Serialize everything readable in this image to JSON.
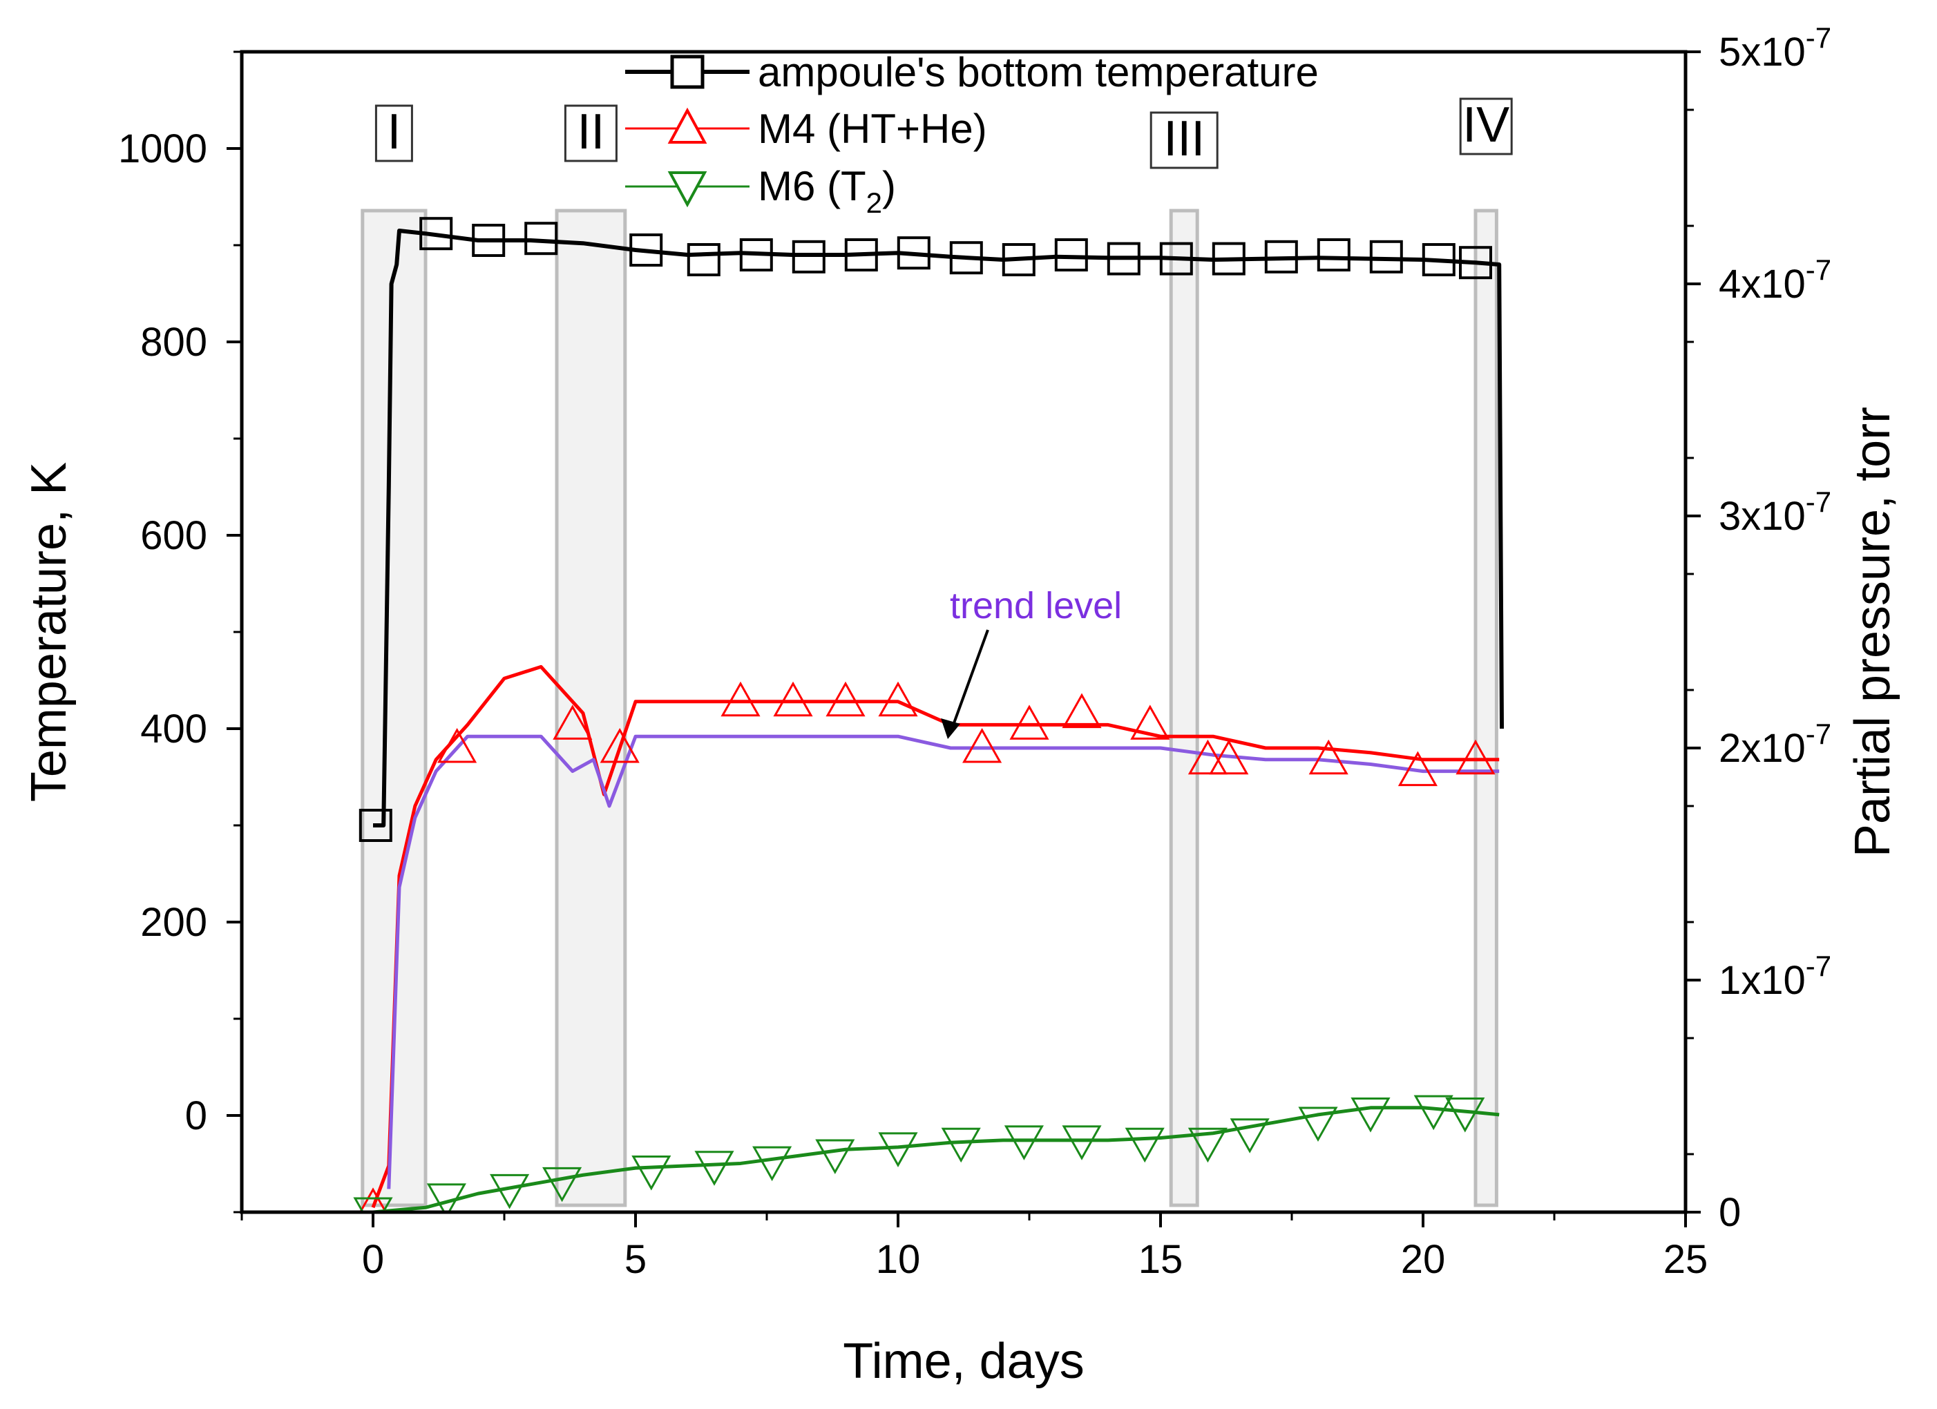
{
  "chart_data": {
    "type": "line",
    "xlabel": "Time, days",
    "ylabel": "Temperature, K",
    "y2label": "Partial pressure, torr",
    "xlim": [
      -2.5,
      25
    ],
    "ylim": [
      -100,
      1100
    ],
    "y2lim": [
      0,
      5e-07
    ],
    "x_ticks": [
      0,
      5,
      10,
      15,
      20,
      25
    ],
    "x_tick_labels": [
      "0",
      "5",
      "10",
      "15",
      "20",
      "25"
    ],
    "y_ticks": [
      0,
      200,
      400,
      600,
      800,
      1000
    ],
    "y_tick_labels": [
      "0",
      "200",
      "400",
      "600",
      "800",
      "1000"
    ],
    "y2_ticks": [
      0,
      1e-07,
      2e-07,
      3e-07,
      4e-07,
      5e-07
    ],
    "y2_tick_mantissa": [
      "0",
      "1x10",
      "2x10",
      "3x10",
      "4x10",
      "5x10"
    ],
    "y2_tick_exponent": [
      "",
      "-7",
      "-7",
      "-7",
      "-7",
      "-7"
    ],
    "legend": [
      {
        "label": "ampoule's bottom temperature",
        "color": "#000000",
        "marker": "square"
      },
      {
        "label": "M4 (HT+He)",
        "color": "#ff0000",
        "marker": "triangle-up"
      },
      {
        "label": "M6 (T",
        "sub": "2",
        "tail": ")",
        "color": "#1a8a1a",
        "marker": "triangle-down"
      }
    ],
    "regions": [
      {
        "label": "I",
        "x0": -0.2,
        "x1": 1.0
      },
      {
        "label": "II",
        "x0": 3.5,
        "x1": 4.8
      },
      {
        "label": "III",
        "x0": 15.2,
        "x1": 15.7
      },
      {
        "label": "IV",
        "x0": 21.0,
        "x1": 21.4
      }
    ],
    "annotation": {
      "text": "trend level",
      "color": "#7b2fe0",
      "x": 11.0,
      "y": 390
    },
    "series": [
      {
        "name": "ampoule's bottom temperature",
        "axis": "left",
        "unit": "K",
        "color": "#000000",
        "x": [
          0.0,
          0.2,
          0.3,
          0.35,
          0.45,
          0.5,
          1.0,
          2.0,
          3.0,
          4.0,
          5.0,
          6.0,
          7.0,
          8.0,
          9.0,
          10.0,
          11.0,
          12.0,
          13.0,
          14.0,
          15.0,
          16.0,
          17.0,
          18.0,
          19.0,
          20.0,
          21.0,
          21.45,
          21.5
        ],
        "y": [
          300,
          300,
          650,
          860,
          880,
          915,
          912,
          905,
          905,
          902,
          895,
          890,
          892,
          890,
          890,
          892,
          888,
          885,
          888,
          887,
          887,
          885,
          886,
          887,
          886,
          885,
          882,
          880,
          400
        ],
        "markers_x": [
          0.05,
          1.2,
          2.2,
          3.2,
          5.2,
          6.3,
          7.3,
          8.3,
          9.3,
          10.3,
          11.3,
          12.3,
          13.3,
          14.3,
          15.3,
          16.3,
          17.3,
          18.3,
          19.3,
          20.3,
          21.0
        ],
        "markers_y": [
          300,
          912,
          905,
          907,
          895,
          885,
          890,
          888,
          890,
          892,
          887,
          885,
          890,
          886,
          886,
          886,
          888,
          890,
          888,
          885,
          882
        ]
      },
      {
        "name": "M4 (HT+He)",
        "axis": "right",
        "unit": "torr",
        "color": "#ff0000",
        "x": [
          0.0,
          0.3,
          0.5,
          0.8,
          1.2,
          1.8,
          2.5,
          3.2,
          4.0,
          4.4,
          5.0,
          6.0,
          7.0,
          8.0,
          9.0,
          10.0,
          11.0,
          12.0,
          13.0,
          14.0,
          15.0,
          16.0,
          17.0,
          18.0,
          19.0,
          20.0,
          21.0,
          21.45
        ],
        "y": [
          2e-09,
          2e-08,
          1.45e-07,
          1.75e-07,
          1.95e-07,
          2.1e-07,
          2.3e-07,
          2.35e-07,
          2.15e-07,
          1.8e-07,
          2.2e-07,
          2.2e-07,
          2.2e-07,
          2.2e-07,
          2.2e-07,
          2.2e-07,
          2.1e-07,
          2.1e-07,
          2.1e-07,
          2.1e-07,
          2.05e-07,
          2.05e-07,
          2e-07,
          2e-07,
          1.98e-07,
          1.95e-07,
          1.95e-07,
          1.95e-07
        ],
        "markers_x": [
          0.0,
          1.6,
          3.8,
          4.7,
          7.0,
          8.0,
          9.0,
          10.0,
          11.6,
          12.5,
          13.5,
          14.8,
          15.9,
          16.3,
          18.2,
          19.9,
          21.0
        ],
        "markers_y": [
          2e-09,
          2e-07,
          2.1e-07,
          2e-07,
          2.2e-07,
          2.2e-07,
          2.2e-07,
          2.2e-07,
          2e-07,
          2.1e-07,
          2.15e-07,
          2.1e-07,
          1.95e-07,
          1.95e-07,
          1.95e-07,
          1.9e-07,
          1.95e-07
        ]
      },
      {
        "name": "trend level",
        "axis": "right",
        "unit": "torr",
        "color": "#8a5ae0",
        "x": [
          0.3,
          0.5,
          0.8,
          1.2,
          1.8,
          2.5,
          3.2,
          3.8,
          4.2,
          4.5,
          5.0,
          6.0,
          7.0,
          8.0,
          9.0,
          10.0,
          11.0,
          12.0,
          13.0,
          14.0,
          15.0,
          16.0,
          17.0,
          18.0,
          19.0,
          20.0,
          21.0,
          21.45
        ],
        "y": [
          1e-08,
          1.4e-07,
          1.7e-07,
          1.9e-07,
          2.05e-07,
          2.05e-07,
          2.05e-07,
          1.9e-07,
          1.95e-07,
          1.75e-07,
          2.05e-07,
          2.05e-07,
          2.05e-07,
          2.05e-07,
          2.05e-07,
          2.05e-07,
          2e-07,
          2e-07,
          2e-07,
          2e-07,
          2e-07,
          1.97e-07,
          1.95e-07,
          1.95e-07,
          1.93e-07,
          1.9e-07,
          1.9e-07,
          1.9e-07
        ]
      },
      {
        "name": "M6 (T2)",
        "axis": "right",
        "unit": "torr",
        "color": "#1a8a1a",
        "x": [
          0.0,
          1.0,
          2.0,
          3.0,
          4.0,
          5.0,
          6.0,
          7.0,
          8.0,
          9.0,
          10.0,
          11.0,
          12.0,
          13.0,
          14.0,
          15.0,
          16.0,
          17.0,
          18.0,
          19.0,
          20.0,
          21.0,
          21.45
        ],
        "y": [
          0,
          2e-09,
          8e-09,
          1.2e-08,
          1.6e-08,
          1.9e-08,
          2e-08,
          2.1e-08,
          2.4e-08,
          2.7e-08,
          2.8e-08,
          3e-08,
          3.1e-08,
          3.1e-08,
          3.1e-08,
          3.2e-08,
          3.4e-08,
          3.8e-08,
          4.2e-08,
          4.5e-08,
          4.5e-08,
          4.3e-08,
          4.2e-08
        ],
        "markers_x": [
          0.0,
          1.4,
          2.6,
          3.6,
          5.3,
          6.5,
          7.6,
          8.8,
          10.0,
          11.2,
          12.4,
          13.5,
          14.7,
          15.9,
          16.7,
          18.0,
          19.0,
          20.2,
          20.8
        ],
        "markers_y": [
          0,
          6e-09,
          1e-08,
          1.3e-08,
          1.8e-08,
          2e-08,
          2.2e-08,
          2.5e-08,
          2.8e-08,
          3e-08,
          3.1e-08,
          3.1e-08,
          3e-08,
          3e-08,
          3.4e-08,
          3.9e-08,
          4.3e-08,
          4.4e-08,
          4.3e-08
        ]
      }
    ]
  }
}
